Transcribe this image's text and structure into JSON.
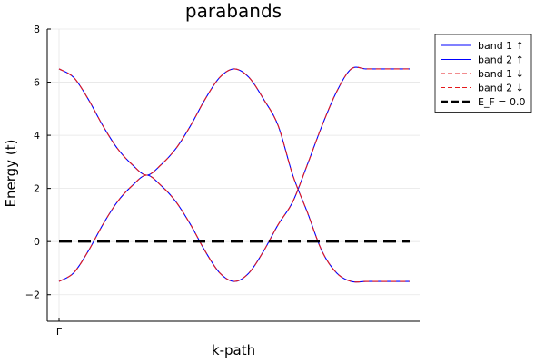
{
  "chart_data": {
    "type": "line",
    "title": "parabands",
    "xlabel": "k-path",
    "ylabel": "Energy (t)",
    "x_tick_labels": [
      "Γ"
    ],
    "y_ticks": [
      -2,
      0,
      2,
      4,
      6,
      8
    ],
    "ylim": [
      -3,
      8
    ],
    "grid": true,
    "legend_position": "outer top-right",
    "legend_entries": [
      "band 1 ↑",
      "band 2 ↑",
      "band 1 ↓",
      "band 2 ↓",
      "E_F = 0.0"
    ],
    "x_range": [
      0,
      6
    ],
    "series": [
      {
        "name": "band 1 ↑",
        "color": "#0000ff",
        "dash": "solid",
        "x": [
          0.0,
          0.25,
          0.5,
          0.75,
          1.0,
          1.25,
          1.5,
          1.75,
          2.0,
          2.25,
          2.5,
          2.75,
          3.0,
          3.25,
          3.5,
          3.75,
          4.0,
          4.25,
          4.5,
          4.75,
          5.0,
          5.25,
          5.5,
          5.75,
          6.0
        ],
        "y": [
          -1.5,
          -1.18,
          -0.36,
          0.64,
          1.5,
          2.1,
          2.5,
          2.1,
          1.5,
          0.64,
          -0.36,
          -1.18,
          -1.5,
          -1.18,
          -0.36,
          0.64,
          1.5,
          2.9,
          4.36,
          5.64,
          6.5,
          6.5,
          6.5,
          6.5,
          6.5
        ]
      },
      {
        "name": "band 2 ↑",
        "color": "#0000ff",
        "dash": "solid",
        "x": [
          0.0,
          0.25,
          0.5,
          0.75,
          1.0,
          1.25,
          1.5,
          1.75,
          2.0,
          2.25,
          2.5,
          2.75,
          3.0,
          3.25,
          3.5,
          3.75,
          4.0,
          4.25,
          4.5,
          4.75,
          5.0,
          5.25,
          5.5,
          5.75,
          6.0
        ],
        "y": [
          6.5,
          6.18,
          5.36,
          4.36,
          3.5,
          2.9,
          2.5,
          2.9,
          3.5,
          4.36,
          5.36,
          6.18,
          6.5,
          6.18,
          5.36,
          4.36,
          2.5,
          1.1,
          -0.36,
          -1.18,
          -1.5,
          -1.5,
          -1.5,
          -1.5,
          -1.5
        ]
      },
      {
        "name": "band 1 ↓",
        "color": "#e41a1c",
        "dash": "dashed",
        "x": [
          0.0,
          0.25,
          0.5,
          0.75,
          1.0,
          1.25,
          1.5,
          1.75,
          2.0,
          2.25,
          2.5,
          2.75,
          3.0,
          3.25,
          3.5,
          3.75,
          4.0,
          4.25,
          4.5,
          4.75,
          5.0,
          5.25,
          5.5,
          5.75,
          6.0
        ],
        "y": [
          -1.5,
          -1.18,
          -0.36,
          0.64,
          1.5,
          2.1,
          2.5,
          2.1,
          1.5,
          0.64,
          -0.36,
          -1.18,
          -1.5,
          -1.18,
          -0.36,
          0.64,
          1.5,
          2.9,
          4.36,
          5.64,
          6.5,
          6.5,
          6.5,
          6.5,
          6.5
        ]
      },
      {
        "name": "band 2 ↓",
        "color": "#e41a1c",
        "dash": "dashed",
        "x": [
          0.0,
          0.25,
          0.5,
          0.75,
          1.0,
          1.25,
          1.5,
          1.75,
          2.0,
          2.25,
          2.5,
          2.75,
          3.0,
          3.25,
          3.5,
          3.75,
          4.0,
          4.25,
          4.5,
          4.75,
          5.0,
          5.25,
          5.5,
          5.75,
          6.0
        ],
        "y": [
          6.5,
          6.18,
          5.36,
          4.36,
          3.5,
          2.9,
          2.5,
          2.9,
          3.5,
          4.36,
          5.36,
          6.18,
          6.5,
          6.18,
          5.36,
          4.36,
          2.5,
          1.1,
          -0.36,
          -1.18,
          -1.5,
          -1.5,
          -1.5,
          -1.5,
          -1.5
        ]
      },
      {
        "name": "E_F = 0.0",
        "color": "#000000",
        "dash": "long-dash",
        "x": [
          0.0,
          6.0
        ],
        "y": [
          0.0,
          0.0
        ]
      }
    ]
  }
}
